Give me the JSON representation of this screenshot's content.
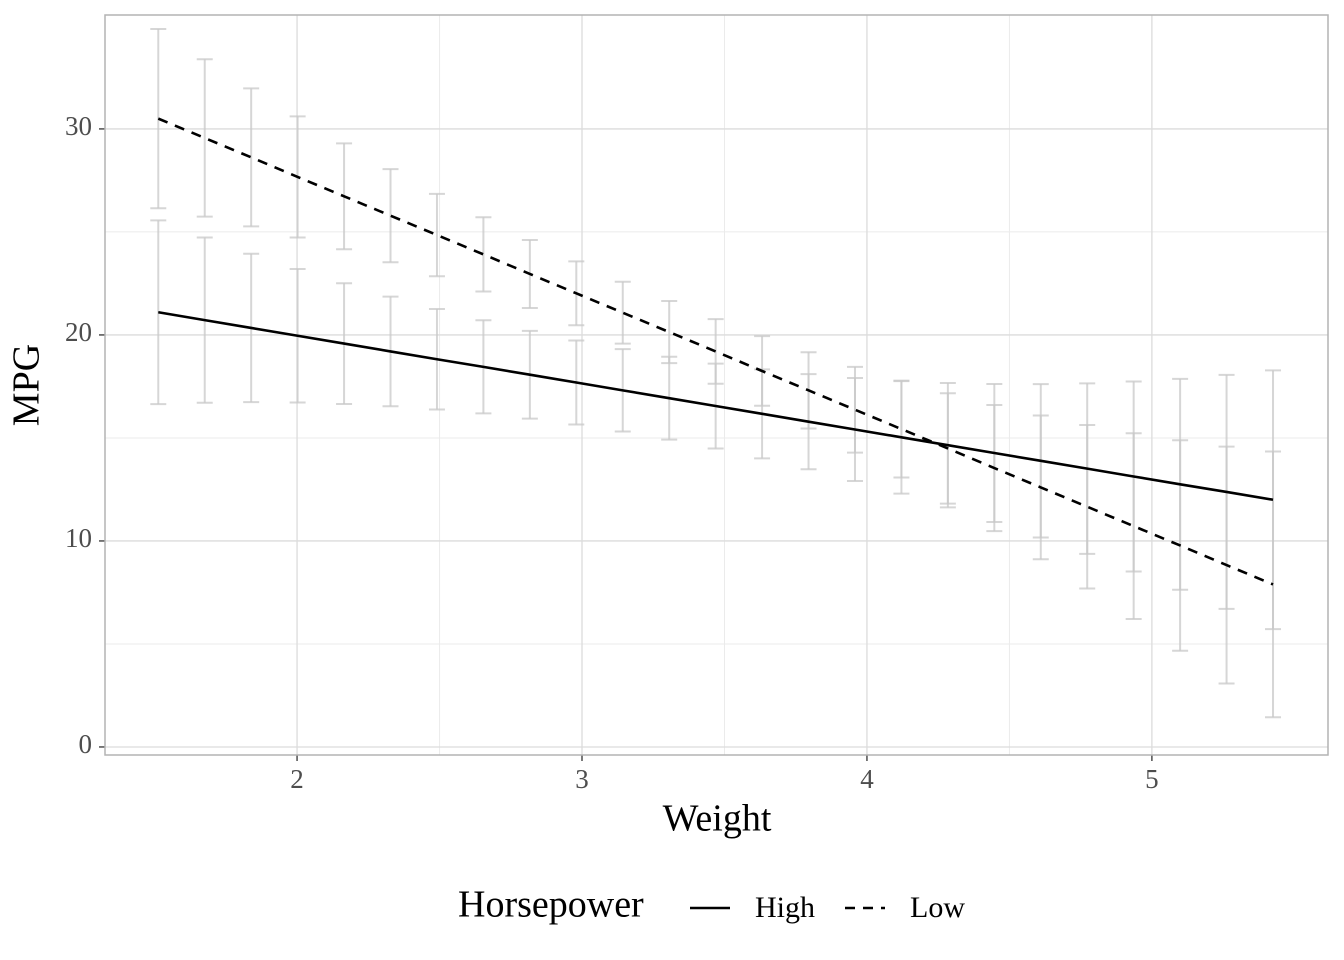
{
  "chart_data": {
    "type": "line",
    "x_label": "Weight",
    "y_label": "MPG",
    "x": [
      1.513,
      1.676,
      1.839,
      2.002,
      2.165,
      2.328,
      2.491,
      2.654,
      2.817,
      2.98,
      3.143,
      3.306,
      3.469,
      3.632,
      3.795,
      3.958,
      4.121,
      4.284,
      4.447,
      4.61,
      4.773,
      4.936,
      5.099,
      5.262,
      5.425
    ],
    "series": [
      {
        "name": "High",
        "color": "#000000",
        "linetype": "solid",
        "error_color": "#c8c8c8",
        "values": [
          21.1,
          20.72,
          20.34,
          19.96,
          19.58,
          19.2,
          18.82,
          18.45,
          18.07,
          17.69,
          17.31,
          16.93,
          16.55,
          16.17,
          15.79,
          15.41,
          15.03,
          14.65,
          14.27,
          13.89,
          13.51,
          13.13,
          12.75,
          12.38,
          12.0
        ],
        "errors": [
          4.46,
          4.01,
          3.6,
          3.24,
          2.93,
          2.66,
          2.44,
          2.26,
          2.13,
          2.04,
          2.0,
          2.01,
          2.06,
          2.16,
          2.31,
          2.5,
          2.73,
          3.02,
          3.35,
          3.72,
          4.14,
          4.61,
          5.12,
          5.68,
          6.28
        ]
      },
      {
        "name": "Low",
        "color": "#000000",
        "linetype": "dashed",
        "error_color": "#c8c8c8",
        "values": [
          30.5,
          29.56,
          28.62,
          27.67,
          26.73,
          25.79,
          24.85,
          23.91,
          22.96,
          22.02,
          21.08,
          20.14,
          19.2,
          18.25,
          17.31,
          16.37,
          15.43,
          14.49,
          13.54,
          12.6,
          11.66,
          10.72,
          9.78,
          8.83,
          7.89
        ],
        "errors": [
          4.35,
          3.82,
          3.35,
          2.94,
          2.57,
          2.26,
          2.0,
          1.8,
          1.65,
          1.55,
          1.5,
          1.51,
          1.57,
          1.69,
          1.85,
          2.08,
          2.35,
          2.68,
          3.06,
          3.49,
          3.97,
          4.51,
          5.11,
          5.75,
          6.45
        ]
      }
    ],
    "xlim": [
      1.326,
      5.618
    ],
    "xticks": [
      2,
      3,
      4,
      5
    ],
    "ylim": [
      -0.39,
      35.53
    ],
    "yticks": [
      0,
      10,
      20,
      30
    ],
    "grid": true,
    "legend_title": "Horsepower",
    "legend_position": "bottom"
  }
}
